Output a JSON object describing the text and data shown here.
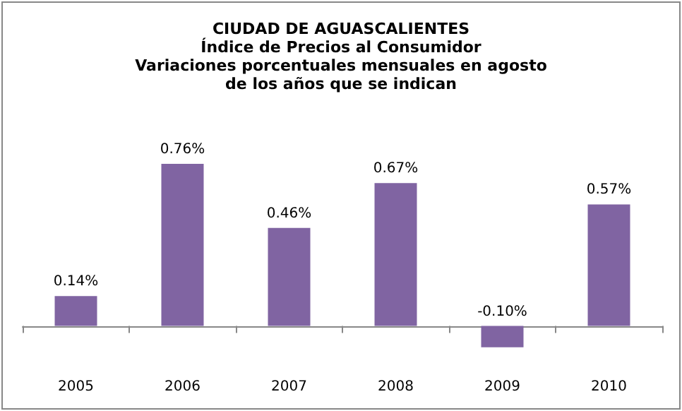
{
  "chart_data": {
    "type": "bar",
    "title": "CIUDAD DE AGUASCALIENTES",
    "subtitle": "Índice de Precios al Consumidor\nVariaciones porcentuales mensuales en agosto\nde los años que se indican",
    "categories": [
      "2005",
      "2006",
      "2007",
      "2008",
      "2009",
      "2010"
    ],
    "values": [
      0.14,
      0.76,
      0.46,
      0.67,
      -0.1,
      0.57
    ],
    "value_labels": [
      "0.14%",
      "0.76%",
      "0.46%",
      "0.67%",
      "-0.10%",
      "0.57%"
    ],
    "color": "#8064a2"
  }
}
